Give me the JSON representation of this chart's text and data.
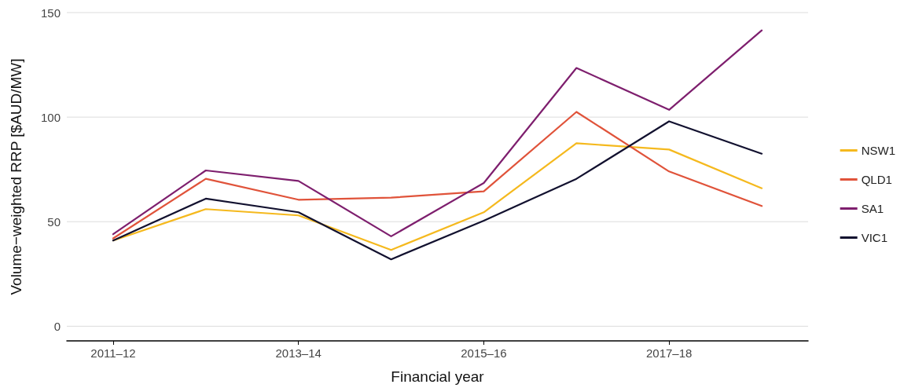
{
  "chart_data": {
    "type": "line",
    "xlabel": "Financial year",
    "ylabel": "Volume−weighted RRP [$AUD/MW]",
    "categories": [
      "2011–12",
      null,
      "2013–14",
      null,
      "2015–16",
      null,
      "2017–18",
      null
    ],
    "series": [
      {
        "name": "NSW1",
        "color": "#f5b91e",
        "values": [
          41,
          56,
          53,
          36.5,
          54.5,
          87.5,
          84.5,
          66
        ]
      },
      {
        "name": "QLD1",
        "color": "#e0533a",
        "values": [
          42,
          70.5,
          60.5,
          61.5,
          64.5,
          102.5,
          74,
          57.5
        ]
      },
      {
        "name": "SA1",
        "color": "#7e1f6e",
        "values": [
          44,
          74.5,
          69.5,
          43,
          68.5,
          123.5,
          103.5,
          141.5
        ]
      },
      {
        "name": "VIC1",
        "color": "#12112f",
        "values": [
          41,
          61,
          54.5,
          32,
          50.5,
          70.5,
          98,
          82.5
        ]
      }
    ],
    "ylim": [
      -7,
      150
    ],
    "yticks": [
      0,
      50,
      100,
      150
    ],
    "grid": "y",
    "legend": "right",
    "marker": "none",
    "line_style": "solid"
  }
}
